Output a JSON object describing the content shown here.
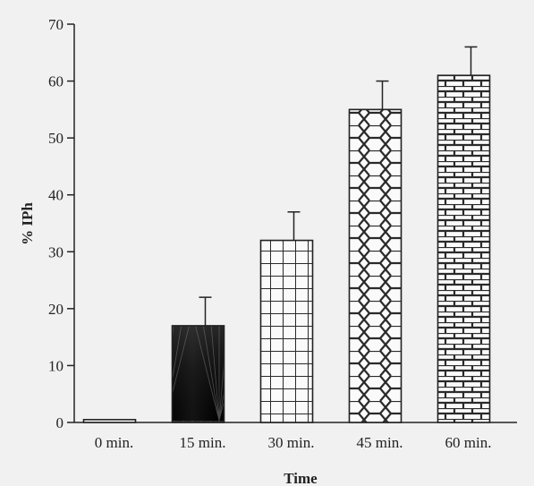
{
  "chart_data": {
    "type": "bar",
    "categories": [
      "0 min.",
      "15 min.",
      "30 min.",
      "45 min.",
      "60 min."
    ],
    "values": [
      0.5,
      17,
      32,
      55,
      61
    ],
    "errors": [
      0,
      5,
      5,
      5,
      5
    ],
    "patterns": [
      "none",
      "radial-dark",
      "grid",
      "hexagon",
      "brick"
    ],
    "title": "",
    "xlabel": "Time",
    "ylabel": "% IPh",
    "ylim": [
      0,
      70
    ],
    "yticks": [
      0,
      10,
      20,
      30,
      40,
      50,
      60,
      70
    ],
    "grid": false,
    "legend": "none"
  }
}
